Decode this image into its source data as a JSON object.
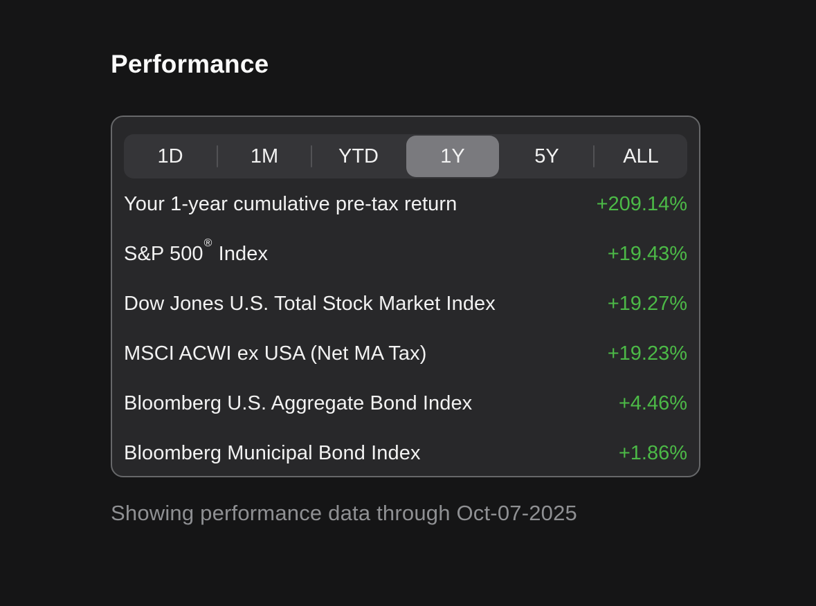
{
  "colors": {
    "background": "#151516",
    "card_background": "#28282a",
    "card_border": "#67686a",
    "segment_track": "#353538",
    "segment_selected": "#7a7a7e",
    "segment_divider": "#525255",
    "text_primary": "#f2f2f2",
    "positive_value_green": "#4cba47",
    "footer_gray": "#8f9093"
  },
  "header": {
    "title": "Performance"
  },
  "time_range_tabs": {
    "selected": "1Y",
    "items": [
      {
        "label": "1D",
        "selected": false
      },
      {
        "label": "1M",
        "selected": false
      },
      {
        "label": "YTD",
        "selected": false
      },
      {
        "label": "1Y",
        "selected": true
      },
      {
        "label": "5Y",
        "selected": false
      },
      {
        "label": "ALL",
        "selected": false
      }
    ]
  },
  "performance_rows": [
    {
      "label": "Your 1-year cumulative pre-tax return",
      "value": "+209.14%"
    },
    {
      "label": "S&P 500® Index",
      "value": "+19.43%"
    },
    {
      "label": "Dow Jones U.S. Total Stock Market Index",
      "value": "+19.27%"
    },
    {
      "label": "MSCI ACWI ex USA (Net MA Tax)",
      "value": "+19.23%"
    },
    {
      "label": "Bloomberg U.S. Aggregate Bond Index",
      "value": "+4.46%"
    },
    {
      "label": "Bloomberg Municipal Bond Index",
      "value": "+1.86%"
    }
  ],
  "footer": {
    "note": "Showing performance data through Oct-07-2025"
  }
}
